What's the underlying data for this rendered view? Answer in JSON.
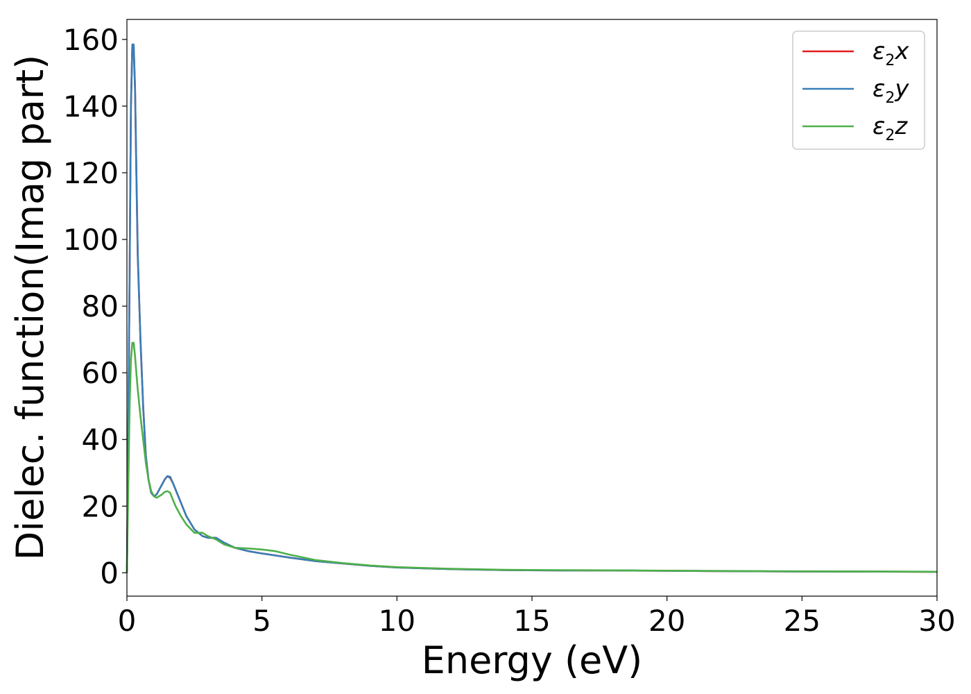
{
  "chart_data": {
    "type": "line",
    "xlabel": "Energy (eV)",
    "ylabel": "Dielec. function(Imag part)",
    "xlim": [
      0,
      30
    ],
    "ylim": [
      -7,
      166
    ],
    "xticks": [
      "0",
      "5",
      "10",
      "15",
      "20",
      "25",
      "30"
    ],
    "yticks": [
      "0",
      "20",
      "40",
      "60",
      "80",
      "100",
      "120",
      "140",
      "160"
    ],
    "grid": false,
    "legend_position": "top-right",
    "series": [
      {
        "name": "ε₂x",
        "legend_sub": "2",
        "legend_base": "ε",
        "legend_axis": "x",
        "color": "#e41a1c",
        "x": [
          0,
          0.05,
          0.1,
          0.15,
          0.2,
          0.25,
          0.3,
          0.35,
          0.4,
          0.5,
          0.6,
          0.7,
          0.8,
          0.9,
          1.0,
          1.1,
          1.2,
          1.3,
          1.4,
          1.5,
          1.6,
          1.7,
          1.8,
          2.0,
          2.2,
          2.5,
          2.8,
          3.0,
          3.3,
          3.6,
          4.0,
          4.5,
          5.0,
          5.5,
          6.0,
          7.0,
          8.0,
          9.0,
          10.0,
          12.0,
          14.0,
          16.0,
          18.0,
          20.0,
          22.0,
          25.0,
          28.0,
          30.0
        ],
        "y": [
          0,
          40,
          90,
          140,
          158,
          158,
          145,
          120,
          95,
          70,
          50,
          35,
          28,
          24,
          23,
          23.5,
          25,
          26.5,
          28,
          29,
          28.5,
          27,
          25,
          21,
          17,
          13,
          11,
          10.5,
          10.5,
          9,
          7.5,
          6.5,
          5.8,
          5.2,
          4.6,
          3.5,
          2.8,
          2.1,
          1.6,
          1.1,
          0.8,
          0.7,
          0.7,
          0.6,
          0.5,
          0.4,
          0.35,
          0.3
        ]
      },
      {
        "name": "ε₂y",
        "legend_sub": "2",
        "legend_base": "ε",
        "legend_axis": "y",
        "color": "#377eb8",
        "x": [
          0,
          0.05,
          0.1,
          0.15,
          0.2,
          0.25,
          0.3,
          0.35,
          0.4,
          0.5,
          0.6,
          0.7,
          0.8,
          0.9,
          1.0,
          1.1,
          1.2,
          1.3,
          1.4,
          1.5,
          1.6,
          1.7,
          1.8,
          2.0,
          2.2,
          2.5,
          2.8,
          3.0,
          3.3,
          3.6,
          4.0,
          4.5,
          5.0,
          5.5,
          6.0,
          7.0,
          8.0,
          9.0,
          10.0,
          12.0,
          14.0,
          16.0,
          18.0,
          20.0,
          22.0,
          25.0,
          28.0,
          30.0
        ],
        "y": [
          0,
          40,
          90,
          140,
          158.5,
          158.5,
          146,
          121,
          96,
          70,
          50,
          35,
          28,
          24,
          23,
          23.5,
          25,
          26.5,
          28,
          29,
          28.8,
          27,
          25,
          21,
          17,
          13,
          11,
          10.5,
          10.5,
          9,
          7.5,
          6.5,
          5.8,
          5.2,
          4.6,
          3.5,
          2.8,
          2.1,
          1.6,
          1.1,
          0.8,
          0.7,
          0.7,
          0.6,
          0.5,
          0.4,
          0.35,
          0.3
        ]
      },
      {
        "name": "ε₂z",
        "legend_sub": "2",
        "legend_base": "ε",
        "legend_axis": "z",
        "color": "#4daf4a",
        "x": [
          0,
          0.05,
          0.1,
          0.15,
          0.2,
          0.25,
          0.3,
          0.35,
          0.4,
          0.5,
          0.6,
          0.7,
          0.8,
          0.9,
          1.0,
          1.1,
          1.2,
          1.3,
          1.4,
          1.5,
          1.6,
          1.7,
          1.8,
          2.0,
          2.2,
          2.5,
          2.8,
          3.0,
          3.3,
          3.6,
          4.0,
          4.5,
          5.0,
          5.5,
          6.0,
          7.0,
          8.0,
          9.0,
          10.0,
          12.0,
          14.0,
          16.0,
          18.0,
          20.0,
          22.0,
          25.0,
          28.0,
          30.0
        ],
        "y": [
          0,
          25,
          50,
          64,
          69,
          69,
          65,
          60,
          55,
          47,
          40,
          33,
          28,
          24.5,
          23,
          22.5,
          23,
          23.5,
          24.3,
          24.5,
          24,
          22,
          20,
          17,
          14.5,
          12,
          12,
          11,
          10,
          8.5,
          7.5,
          7.3,
          7.0,
          6.5,
          5.5,
          3.8,
          2.9,
          2.2,
          1.7,
          1.2,
          0.9,
          0.8,
          0.75,
          0.65,
          0.55,
          0.45,
          0.38,
          0.33
        ]
      }
    ]
  }
}
